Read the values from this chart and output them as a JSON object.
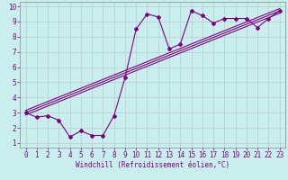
{
  "xlabel": "Windchill (Refroidissement éolien,°C)",
  "bg_color": "#c8eeed",
  "line_color": "#800080",
  "grid_color": "#aaaaaa",
  "grid_color2": "#bbcccc",
  "xlim": [
    -0.5,
    23.5
  ],
  "ylim": [
    0.7,
    10.3
  ],
  "xticks": [
    0,
    1,
    2,
    3,
    4,
    5,
    6,
    7,
    8,
    9,
    10,
    11,
    12,
    13,
    14,
    15,
    16,
    17,
    18,
    19,
    20,
    21,
    22,
    23
  ],
  "yticks": [
    1,
    2,
    3,
    4,
    5,
    6,
    7,
    8,
    9,
    10
  ],
  "scatter_x": [
    0,
    1,
    2,
    3,
    4,
    5,
    6,
    7,
    8,
    9,
    10,
    11,
    12,
    13,
    14,
    15,
    16,
    17,
    18,
    19,
    20,
    21,
    22,
    23
  ],
  "scatter_y": [
    3.0,
    2.7,
    2.8,
    2.5,
    1.4,
    1.8,
    1.5,
    1.5,
    2.8,
    5.3,
    8.5,
    9.5,
    9.3,
    7.2,
    7.5,
    9.7,
    9.4,
    8.9,
    9.2,
    9.2,
    9.2,
    8.6,
    9.2,
    9.7
  ],
  "line1_x": [
    0,
    23
  ],
  "line1_y": [
    3.0,
    9.7
  ],
  "line2_x": [
    0,
    23
  ],
  "line2_y": [
    2.85,
    9.55
  ],
  "line3_x": [
    0,
    23
  ],
  "line3_y": [
    3.15,
    9.85
  ]
}
